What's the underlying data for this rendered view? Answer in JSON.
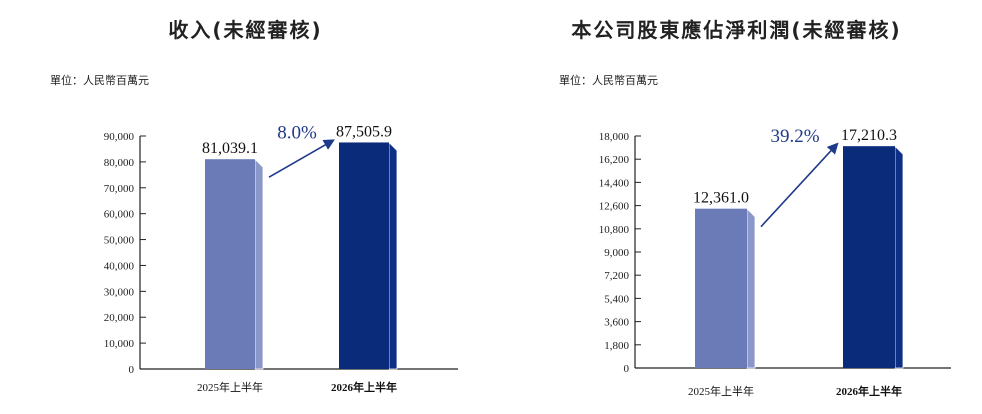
{
  "chart_data": [
    {
      "type": "bar",
      "title": "收入(未經審核)",
      "unit": "單位：人民幣百萬元",
      "categories": [
        "2025年上半年",
        "2026年上半年"
      ],
      "values": [
        81039.1,
        87505.9
      ],
      "value_labels": [
        "81,039.1",
        "87,505.9"
      ],
      "growth_label": "8.0%",
      "ylim": [
        0,
        90000
      ],
      "yticks": [
        0,
        10000,
        20000,
        30000,
        40000,
        50000,
        60000,
        70000,
        80000,
        90000
      ],
      "ytick_labels": [
        "0",
        "10,000",
        "20,000",
        "30,000",
        "40,000",
        "50,000",
        "60,000",
        "70,000",
        "80,000",
        "90,000"
      ],
      "bar_colors": [
        "#6b7bb8",
        "#0a2a7a"
      ],
      "highlight_category": "2026年上半年",
      "grid": false
    },
    {
      "type": "bar",
      "title": "本公司股東應佔淨利潤(未經審核)",
      "unit": "單位：人民幣百萬元",
      "categories": [
        "2025年上半年",
        "2026年上半年"
      ],
      "values": [
        12361.0,
        17210.3
      ],
      "value_labels": [
        "12,361.0",
        "17,210.3"
      ],
      "growth_label": "39.2%",
      "ylim": [
        0,
        18000
      ],
      "yticks": [
        0,
        1800,
        3600,
        5400,
        7200,
        9000,
        10800,
        12600,
        14400,
        16200,
        18000
      ],
      "ytick_labels": [
        "0",
        "1,800",
        "3,600",
        "5,400",
        "7,200",
        "9,000",
        "10,800",
        "12,600",
        "14,400",
        "16,200",
        "18,000"
      ],
      "bar_colors": [
        "#6b7bb8",
        "#0a2a7a"
      ],
      "highlight_category": "2026年上半年",
      "grid": false
    }
  ]
}
